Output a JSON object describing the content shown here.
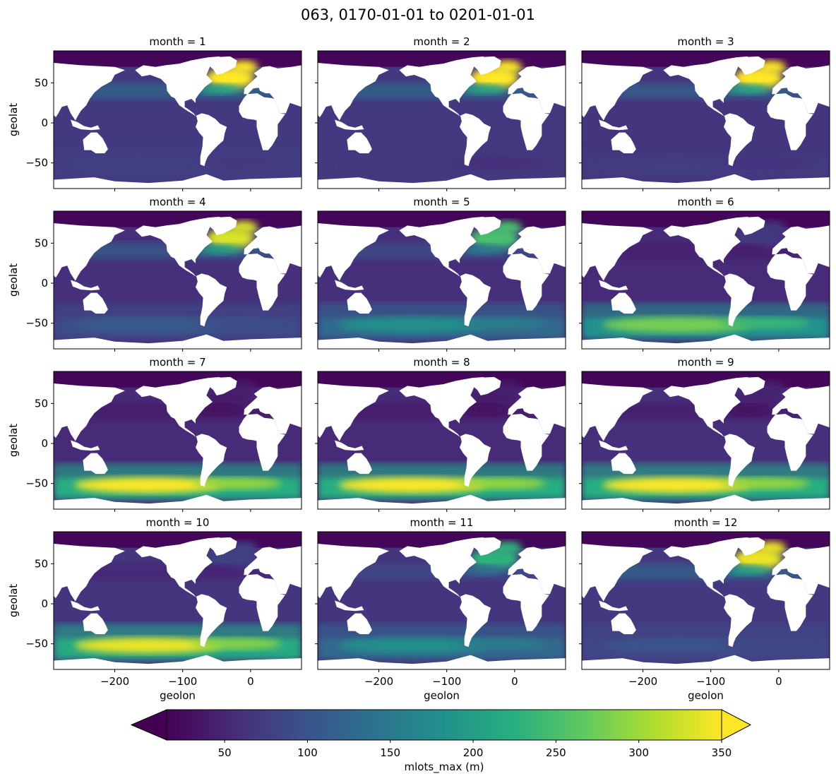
{
  "chart_data": {
    "type": "heatmap",
    "title": "063, 0170-01-01 to 0201-01-01",
    "xlabel": "geolon",
    "ylabel": "geolat",
    "xlim": [
      -290,
      75
    ],
    "ylim": [
      -82,
      90
    ],
    "x_ticks": [
      -200,
      -100,
      0
    ],
    "x_tick_labels": [
      "−200",
      "−100",
      "0"
    ],
    "y_ticks": [
      50,
      0,
      -50
    ],
    "y_tick_labels": [
      "50",
      "0",
      "−50"
    ],
    "colorbar": {
      "label": "mlots_max (m)",
      "vmin": 15,
      "vmax": 350,
      "ticks": [
        50,
        100,
        150,
        200,
        250,
        300,
        350
      ],
      "extend": "both",
      "colormap": "viridis"
    },
    "panels": [
      {
        "title": "month = 1",
        "north_atlantic": 350,
        "southern_ocean": 80,
        "tropics": 70
      },
      {
        "title": "month = 2",
        "north_atlantic": 350,
        "southern_ocean": 70,
        "tropics": 70
      },
      {
        "title": "month = 3",
        "north_atlantic": 350,
        "southern_ocean": 75,
        "tropics": 65
      },
      {
        "title": "month = 4",
        "north_atlantic": 330,
        "southern_ocean": 110,
        "tropics": 60
      },
      {
        "title": "month = 5",
        "north_atlantic": 250,
        "southern_ocean": 180,
        "tropics": 60
      },
      {
        "title": "month = 6",
        "north_atlantic": 70,
        "southern_ocean": 280,
        "tropics": 55
      },
      {
        "title": "month = 7",
        "north_atlantic": 40,
        "southern_ocean": 350,
        "tropics": 55
      },
      {
        "title": "month = 8",
        "north_atlantic": 40,
        "southern_ocean": 350,
        "tropics": 55
      },
      {
        "title": "month = 9",
        "north_atlantic": 45,
        "southern_ocean": 350,
        "tropics": 60
      },
      {
        "title": "month = 10",
        "north_atlantic": 80,
        "southern_ocean": 340,
        "tropics": 65
      },
      {
        "title": "month = 11",
        "north_atlantic": 230,
        "southern_ocean": 180,
        "tropics": 65
      },
      {
        "title": "month = 12",
        "north_atlantic": 340,
        "southern_ocean": 100,
        "tropics": 70
      }
    ]
  }
}
